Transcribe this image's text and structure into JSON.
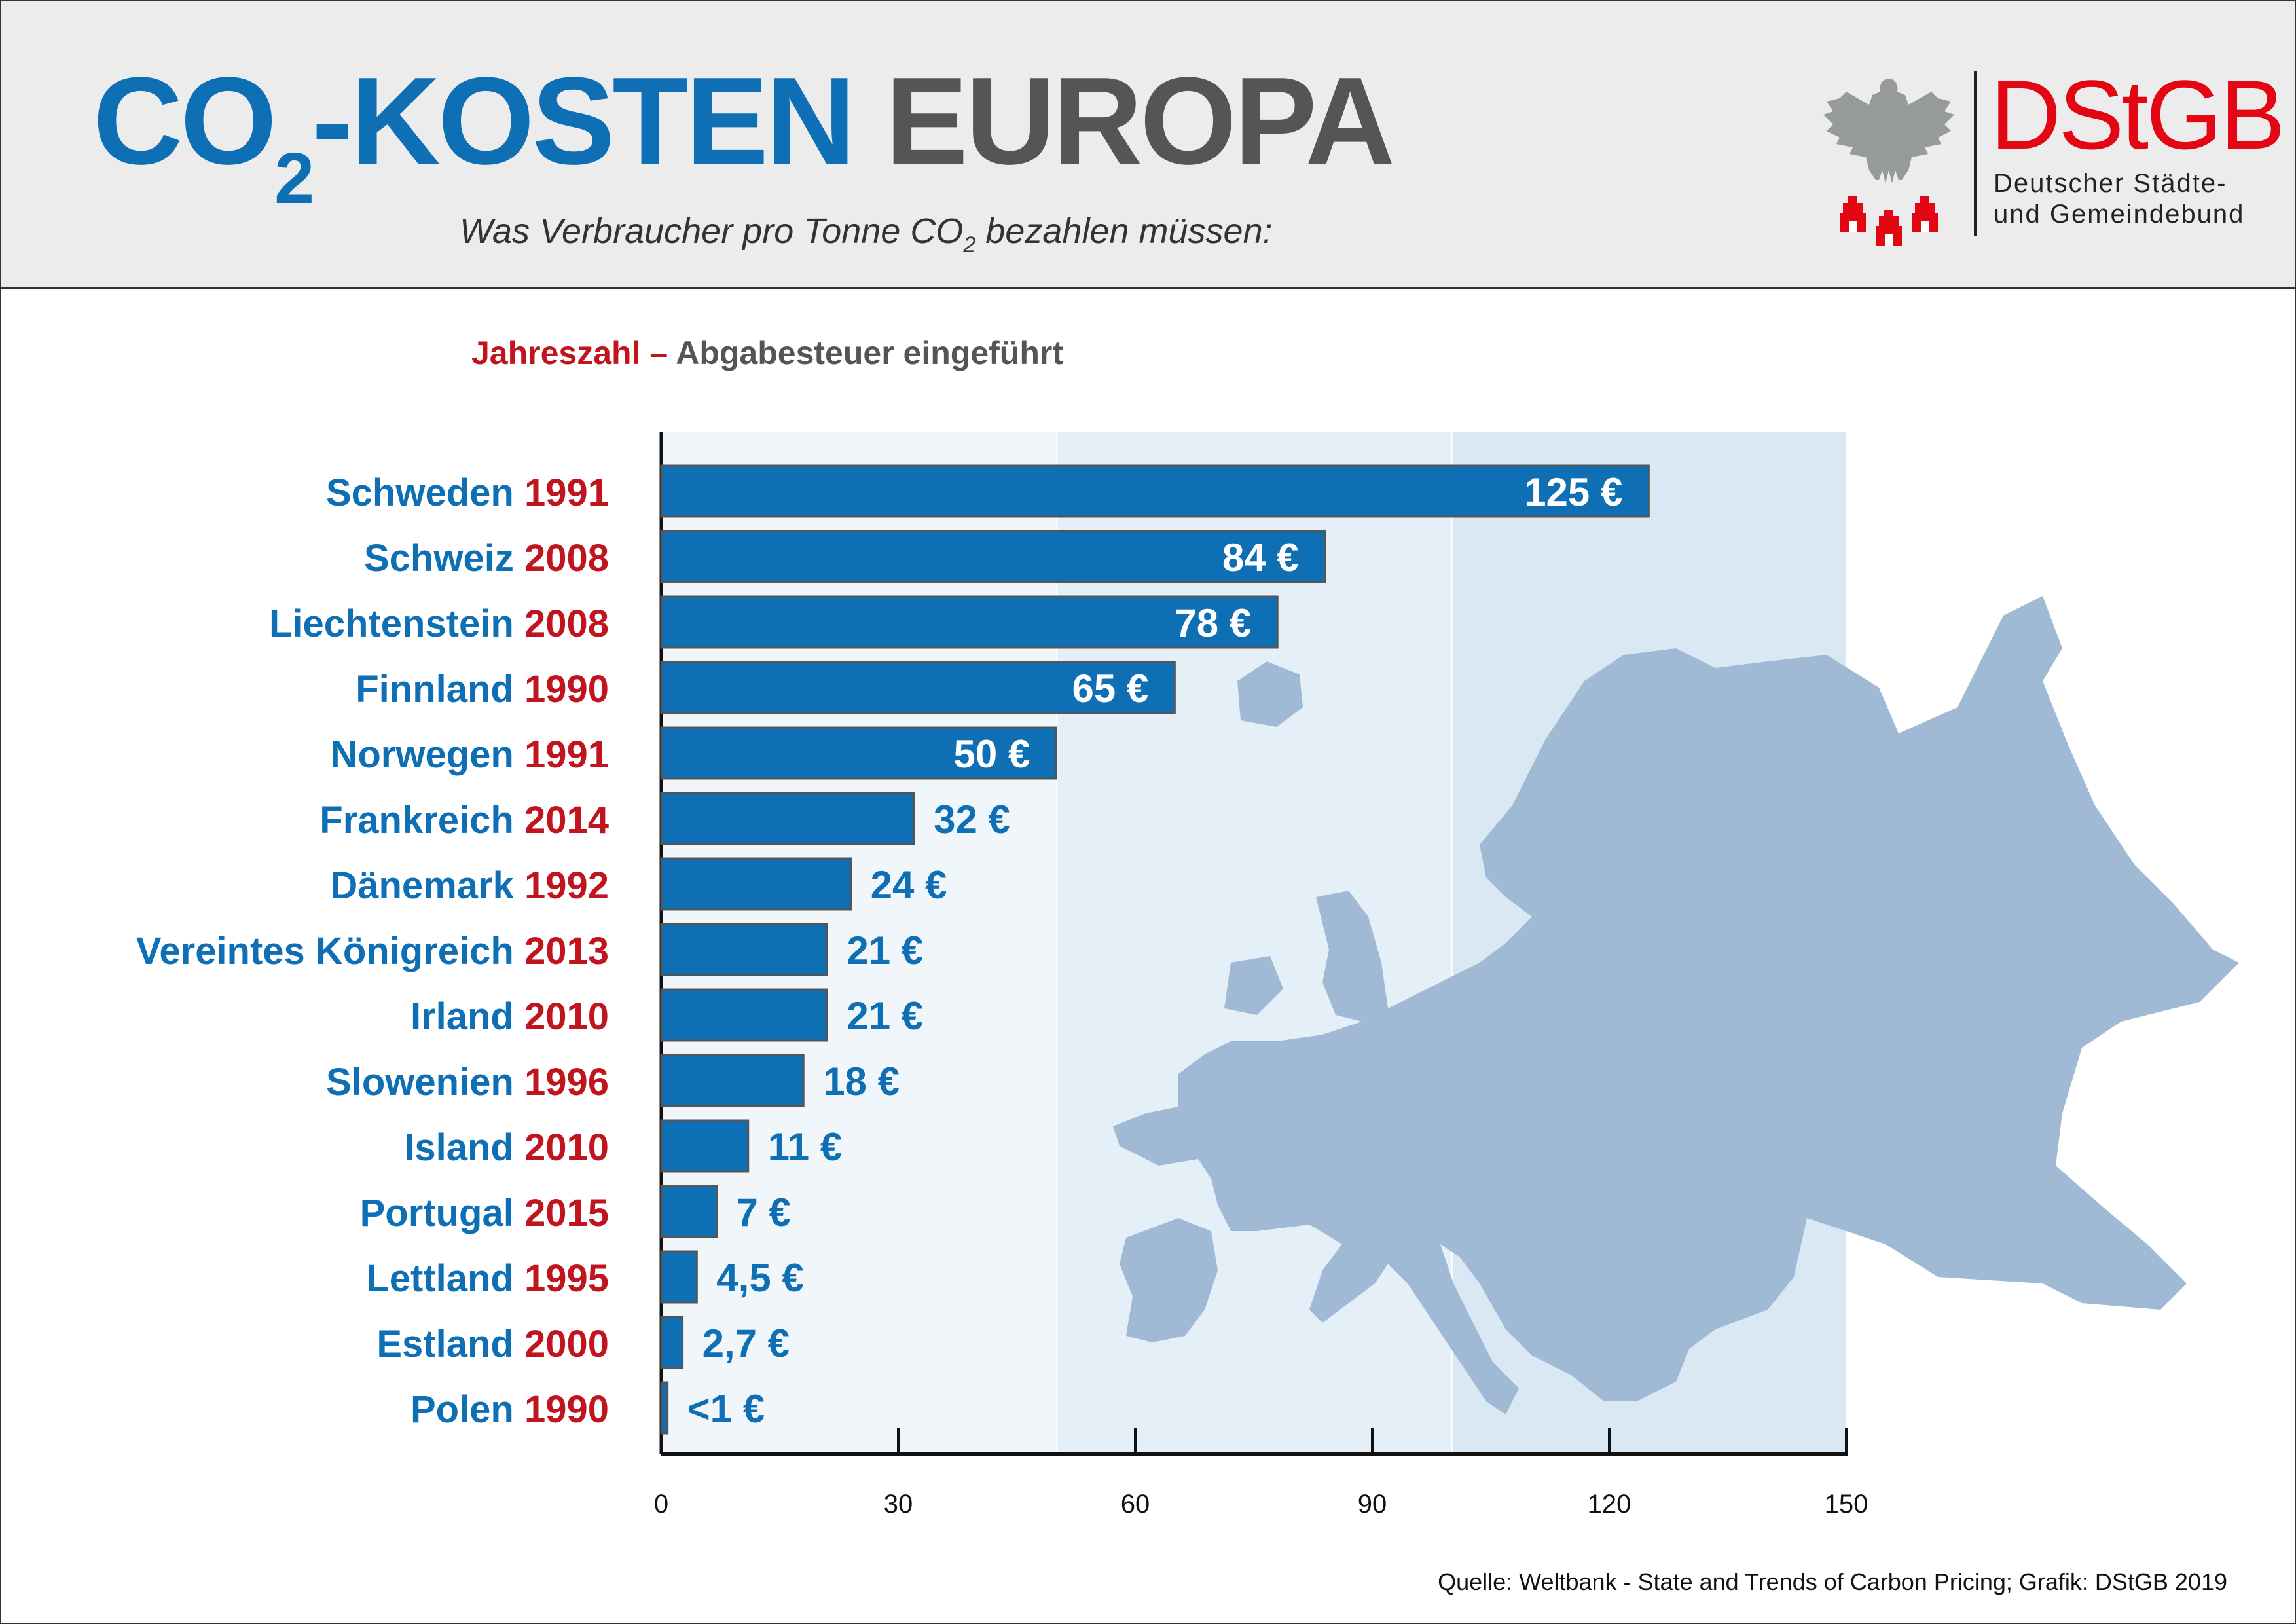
{
  "header": {
    "title_part1": "CO",
    "title_sub": "2",
    "title_part2": "-KOSTEN",
    "title_part3": "EUROPA",
    "subtitle_part1": "Was Verbraucher pro Tonne CO",
    "subtitle_sub": "2",
    "subtitle_part2": " bezahlen müssen:"
  },
  "logo": {
    "name": "DStGB",
    "line1": "Deutscher Städte-",
    "line2": "und Gemeindebund",
    "icons": [
      "eagle-icon",
      "castle-towers-icon"
    ]
  },
  "legend_note": {
    "year_label": "Jahreszahl",
    "dash": " – ",
    "text": "Abgabesteuer eingeführt"
  },
  "colors": {
    "blue": "#0e6fb5",
    "red": "#c0151e",
    "gray": "#555555",
    "logo_red": "#e30613",
    "map": "#a0b9d4",
    "band1": "#f0f6fa",
    "band2": "#e4eff7",
    "band3": "#dae8f4"
  },
  "chart_data": {
    "type": "bar",
    "orientation": "horizontal",
    "title": "CO2-KOSTEN EUROPA",
    "subtitle": "Was Verbraucher pro Tonne CO2 bezahlen müssen:",
    "xlabel": "",
    "ylabel": "",
    "xlim": [
      0,
      150
    ],
    "xticks": [
      0,
      30,
      60,
      90,
      120,
      150
    ],
    "background_bands": [
      [
        0,
        50
      ],
      [
        50,
        100
      ],
      [
        100,
        150
      ]
    ],
    "grid": false,
    "categories": [
      "Schweden",
      "Schweiz",
      "Liechtenstein",
      "Finnland",
      "Norwegen",
      "Frankreich",
      "Dänemark",
      "Vereintes Königreich",
      "Irland",
      "Slowenien",
      "Island",
      "Portugal",
      "Lettland",
      "Estland",
      "Polen"
    ],
    "years": [
      "1991",
      "2008",
      "2008",
      "1990",
      "1991",
      "2014",
      "1992",
      "2013",
      "2010",
      "1996",
      "2010",
      "2015",
      "1995",
      "2000",
      "1990"
    ],
    "values": [
      125,
      84,
      78,
      65,
      50,
      32,
      24,
      21,
      21,
      18,
      11,
      7,
      4.5,
      2.7,
      0.8
    ],
    "value_labels": [
      "125 €",
      "84 €",
      "78 €",
      "65 €",
      "50 €",
      "32 €",
      "24 €",
      "21 €",
      "21 €",
      "18 €",
      "11 €",
      "7 €",
      "4,5 €",
      "2,7 €",
      "<1 €"
    ],
    "units": "€ pro Tonne CO2"
  },
  "source": "Quelle: Weltbank - State and Trends of Carbon Pricing; Grafik: DStGB 2019"
}
